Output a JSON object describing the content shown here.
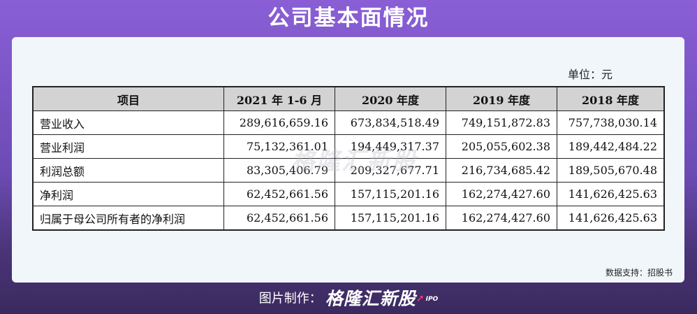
{
  "header": {
    "title": "公司基本面情况"
  },
  "table": {
    "unit_label": "单位：元",
    "columns": [
      "项目",
      "2021 年 1-6 月",
      "2020 年度",
      "2019 年度",
      "2018 年度"
    ],
    "rows": [
      {
        "label": "营业收入",
        "values": [
          "289,616,659.16",
          "673,834,518.49",
          "749,151,872.83",
          "757,738,030.14"
        ]
      },
      {
        "label": "营业利润",
        "values": [
          "75,132,361.01",
          "194,449,317.37",
          "205,055,602.38",
          "189,442,484.22"
        ]
      },
      {
        "label": "利润总额",
        "values": [
          "83,305,406.79",
          "209,327,677.71",
          "216,734,685.42",
          "189,505,670.48"
        ]
      },
      {
        "label": "净利润",
        "values": [
          "62,452,661.56",
          "157,115,201.16",
          "162,274,427.60",
          "141,626,425.63"
        ]
      },
      {
        "label": "归属于母公司所有者的净利润",
        "values": [
          "62,452,661.56",
          "157,115,201.16",
          "162,274,427.60",
          "141,626,425.63"
        ]
      }
    ]
  },
  "source": "数据支持：招股书",
  "watermark": "格隆汇新股",
  "footer": {
    "label": "图片制作：",
    "logo": "格隆汇新股",
    "logo_sub": "IPO"
  }
}
